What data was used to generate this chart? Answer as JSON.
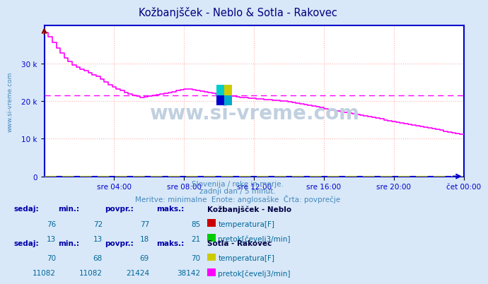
{
  "title": "Kožbanjšček - Neblo & Sotla - Rakovec",
  "title_color": "#000080",
  "bg_color": "#d8e8f8",
  "plot_bg_color": "#ffffff",
  "watermark": "www.si-vreme.com",
  "watermark_color": "#c0d0e0",
  "subtitle_lines": [
    "Slovenija / reke in morje.",
    "zadnji dan / 5 minut.",
    "Meritve: minimalne  Enote: anglosaške  Črta: povprečje"
  ],
  "subtitle_color": "#4488bb",
  "x_ticks": [
    "sre 04:00",
    "sre 08:00",
    "sre 12:00",
    "sre 16:00",
    "sre 20:00",
    "čet 00:00"
  ],
  "y_tick_values": [
    0,
    10000,
    20000,
    30000
  ],
  "y_tick_labels": [
    "0",
    "10 k",
    "20 k",
    "30 k"
  ],
  "ylim_max": 40000,
  "xlim_max": 288,
  "axis_color": "#0000cc",
  "tick_color": "#0000cc",
  "grid_color": "#ffb0b0",
  "dashed_line_value": 21424,
  "dashed_line_color": "#ff00ff",
  "zero_line_color": "#cccc00",
  "arrow_color": "#880000",
  "left_label": "www.si-vreme.com",
  "left_label_color": "#4488bb",
  "neblo_flow_color": "#ff00ff",
  "neblo_flow_data": [
    38142,
    37000,
    35500,
    34000,
    32800,
    31500,
    30500,
    29500,
    29000,
    28500,
    28000,
    27500,
    27000,
    26500,
    25800,
    25000,
    24200,
    23700,
    23200,
    22700,
    22300,
    21900,
    21500,
    21200,
    21000,
    21100,
    21200,
    21400,
    21600,
    21800,
    22000,
    22200,
    22500,
    22700,
    22900,
    23100,
    23100,
    23000,
    22800,
    22600,
    22400,
    22200,
    22000,
    21800,
    21600,
    21500,
    21300,
    21200,
    21100,
    21000,
    20900,
    20800,
    20700,
    20600,
    20500,
    20400,
    20300,
    20200,
    20100,
    20000,
    19900,
    19800,
    19600,
    19400,
    19200,
    19000,
    18800,
    18600,
    18400,
    18200,
    18000,
    17800,
    17600,
    17400,
    17200,
    17000,
    16800,
    16600,
    16400,
    16200,
    16000,
    15800,
    15600,
    15400,
    15200,
    15000,
    14800,
    14600,
    14400,
    14200,
    14000,
    13800,
    13600,
    13400,
    13200,
    13000,
    12800,
    12600,
    12400,
    12200,
    12000,
    11800,
    11600,
    11400,
    11200,
    11082
  ],
  "logo_colors": [
    "#00cccc",
    "#cccc00",
    "#0000cc",
    "#00aacc"
  ],
  "table_header_color": "#0000aa",
  "table_value_color": "#006699",
  "table_title_color": "#000044",
  "neblo_title": "Kožbanjšček - Neblo",
  "rakovec_title": "Sotla - Rakovec",
  "neblo_rows": [
    {
      "label": "temperatura[F]",
      "sedaj": 76,
      "min": 72,
      "povpr": 77,
      "maks": 85,
      "color": "#cc0000"
    },
    {
      "label": "pretok[čevelj3/min]",
      "sedaj": 13,
      "min": 13,
      "povpr": 18,
      "maks": 21,
      "color": "#00cc00"
    }
  ],
  "rakovec_rows": [
    {
      "label": "temperatura[F]",
      "sedaj": 70,
      "min": 68,
      "povpr": 69,
      "maks": 70,
      "color": "#cccc00"
    },
    {
      "label": "pretok[čevelj3/min]",
      "sedaj": 11082,
      "min": 11082,
      "povpr": 21424,
      "maks": 38142,
      "color": "#ff00ff"
    }
  ]
}
